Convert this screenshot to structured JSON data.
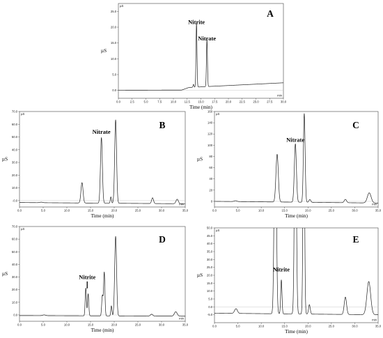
{
  "chart_data": [
    {
      "panel": "A",
      "type": "line",
      "ylabel": "µS",
      "xlabel": "Time (min)",
      "y_unit_tag": "µS",
      "x_unit_tag": "min",
      "xlim": [
        0,
        30
      ],
      "ylim": [
        -2.5,
        27.5
      ],
      "xticks": [
        "0.0",
        "2.5",
        "5.0",
        "7.5",
        "10.0",
        "12.5",
        "15.0",
        "17.5",
        "20.0",
        "22.5",
        "25.0",
        "27.5",
        "30.0"
      ],
      "yticks": [
        "0.0",
        "5.0",
        "10.0",
        "15.0",
        "20.0",
        "25.0"
      ],
      "baseline": [
        [
          0,
          0.05
        ],
        [
          11.5,
          0.1
        ],
        [
          12.8,
          0.9
        ],
        [
          13.6,
          1.0
        ],
        [
          15,
          1.1
        ],
        [
          30,
          2.4
        ]
      ],
      "peaks": [
        [
          13.65,
          0.9,
          0.08
        ],
        [
          14.2,
          20.2,
          0.09
        ],
        [
          16.1,
          15.0,
          0.09
        ]
      ],
      "annotations": [
        {
          "text": "Nitrite",
          "x": 14.2,
          "y": 21.0
        },
        {
          "text": "Nitrate",
          "x": 16.1,
          "y": 15.8
        }
      ]
    },
    {
      "panel": "B",
      "type": "line",
      "ylabel": "µS",
      "xlabel": "Time (min)",
      "y_unit_tag": "µS",
      "x_unit_tag": "min",
      "xlim": [
        0,
        35
      ],
      "ylim": [
        -5,
        70
      ],
      "xticks": [
        "0.0",
        "5.0",
        "10.0",
        "15.0",
        "20.0",
        "25.0",
        "30.0",
        "35.0"
      ],
      "yticks": [
        "-0.0",
        "10.0",
        "20.0",
        "30.0",
        "40.0",
        "50.0",
        "60.0",
        "70.0"
      ],
      "baseline": [
        [
          0,
          -1.5
        ],
        [
          35,
          -2.5
        ]
      ],
      "peaks": [
        [
          4.6,
          0.4,
          0.3
        ],
        [
          13.2,
          16.0,
          0.22
        ],
        [
          17.3,
          51.5,
          0.2
        ],
        [
          19.3,
          5.0,
          0.12
        ],
        [
          20.3,
          65.5,
          0.2
        ],
        [
          28.1,
          4.5,
          0.2
        ],
        [
          33.3,
          3.5,
          0.25
        ]
      ],
      "annotations": [
        {
          "text": "Nitrate",
          "x": 17.3,
          "y": 52.5
        }
      ]
    },
    {
      "panel": "C",
      "type": "line",
      "ylabel": "µS",
      "xlabel": "Time (min)",
      "y_unit_tag": "µS",
      "x_unit_tag": "min",
      "xlim": [
        0,
        35
      ],
      "ylim": [
        -10,
        160
      ],
      "xticks": [
        "0.0",
        "5.0",
        "10.0",
        "15.0",
        "20.0",
        "25.0",
        "30.0",
        "35.0"
      ],
      "yticks": [
        "0",
        "20",
        "40",
        "60",
        "80",
        "100",
        "120",
        "140",
        "160"
      ],
      "baseline": [
        [
          0,
          0
        ],
        [
          35,
          -3
        ]
      ],
      "peaks": [
        [
          4.5,
          1.5,
          0.3
        ],
        [
          13.4,
          85.0,
          0.25
        ],
        [
          17.3,
          104.0,
          0.22
        ],
        [
          19.2,
          158.0,
          0.18
        ],
        [
          20.4,
          5.0,
          0.2
        ],
        [
          28.0,
          6.0,
          0.25
        ],
        [
          33.1,
          18.0,
          0.4
        ]
      ],
      "annotations": [
        {
          "text": "Nitrate",
          "x": 17.3,
          "y": 106.0
        }
      ]
    },
    {
      "panel": "D",
      "type": "line",
      "ylabel": "µS",
      "xlabel": "Time (min)",
      "y_unit_tag": "µS",
      "x_unit_tag": "min",
      "xlim": [
        0,
        35
      ],
      "ylim": [
        -5,
        70
      ],
      "xticks": [
        "0.0",
        "5.0",
        "10.0",
        "15.0",
        "20.0",
        "25.0",
        "30.0",
        "35.0"
      ],
      "yticks": [
        "0.0",
        "10.0",
        "20.0",
        "30.0",
        "40.0",
        "50.0",
        "60.0",
        "70.0"
      ],
      "baseline": [
        [
          0,
          -0.5
        ],
        [
          35,
          -1
        ]
      ],
      "peaks": [
        [
          5.2,
          0.6,
          0.3
        ],
        [
          14.0,
          22.0,
          0.13
        ],
        [
          14.5,
          17.5,
          0.13
        ],
        [
          17.5,
          16.0,
          0.14
        ],
        [
          17.9,
          34.5,
          0.14
        ],
        [
          19.4,
          8.0,
          0.12
        ],
        [
          20.3,
          63.0,
          0.2
        ],
        [
          27.9,
          1.5,
          0.25
        ],
        [
          33.0,
          3.5,
          0.3
        ]
      ],
      "annotations": [
        {
          "text": "Nitrite",
          "x": 14.3,
          "y": 28.5
        }
      ]
    },
    {
      "panel": "E",
      "type": "line",
      "ylabel": "µS",
      "xlabel": "Time (min)",
      "y_unit_tag": "µS",
      "x_unit_tag": "min",
      "xlim": [
        0,
        35
      ],
      "ylim": [
        -10,
        50
      ],
      "xticks": [
        "0.0",
        "5.0",
        "10.0",
        "15.0",
        "20.0",
        "25.0",
        "30.0",
        "35.0"
      ],
      "yticks": [
        "-5.0",
        "0.0",
        "5.0",
        "10.0",
        "15.0",
        "20.0",
        "25.0",
        "30.0",
        "35.0",
        "40.0",
        "45.0",
        "50.0"
      ],
      "baseline": [
        [
          0,
          -4
        ],
        [
          35,
          -5
        ]
      ],
      "peaks": [
        [
          4.6,
          3.0,
          0.3
        ],
        [
          13.0,
          150.0,
          0.22
        ],
        [
          14.3,
          21.5,
          0.14
        ],
        [
          17.3,
          150.0,
          0.2
        ],
        [
          19.1,
          150.0,
          0.16
        ],
        [
          20.3,
          6.0,
          0.18
        ],
        [
          28.0,
          11.0,
          0.25
        ],
        [
          33.0,
          21.0,
          0.4
        ]
      ],
      "annotations": [
        {
          "text": "Nitrite",
          "x": 14.3,
          "y": 22.5
        }
      ]
    }
  ]
}
